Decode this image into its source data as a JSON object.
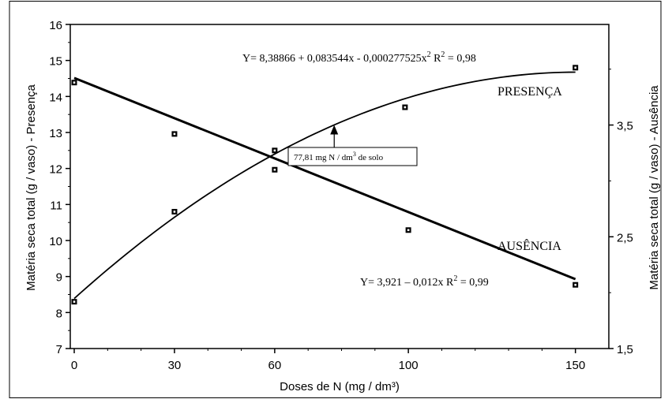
{
  "chart_data": {
    "type": "line",
    "xlabel": "Doses de N  (mg / dm³)",
    "ylabel_left": "Matéria seca total (g / vaso) - Presença",
    "ylabel_right": "Matéria seca total (g / vaso) - Ausência",
    "x_ticks": [
      "0",
      "30",
      "60",
      "100",
      "150"
    ],
    "x_tick_values": [
      0,
      30,
      60,
      100,
      150
    ],
    "xlim": [
      0,
      160
    ],
    "ylim_left": [
      7,
      16
    ],
    "y_ticks_left": [
      "7",
      "8",
      "9",
      "10",
      "11",
      "12",
      "13",
      "14",
      "15",
      "16"
    ],
    "ylim_right": [
      1.5,
      4.4
    ],
    "y_ticks_right": [
      "1,5",
      "2,5",
      "3,5"
    ],
    "y_tick_values_right": [
      1.5,
      2.5,
      3.5
    ],
    "series": [
      {
        "name": "PRESENÇA",
        "axis": "left",
        "points": [
          {
            "x": 0,
            "y": 8.3
          },
          {
            "x": 30,
            "y": 10.8
          },
          {
            "x": 60,
            "y": 12.5
          },
          {
            "x": 99,
            "y": 13.7
          },
          {
            "x": 150,
            "y": 14.8
          }
        ],
        "equation": "Y= 8,38866 + 0,083544x - 0,000277525x² R² = 0,98",
        "equation_display": {
          "main": "Y= 8,38866 + 0,083544x - 0,000277525x",
          "sup": "2",
          "r2_prefix": "R",
          "r2_sup": "2",
          "r2_value": " = 0,98"
        },
        "fit": {
          "a": 8.38866,
          "b": 0.083544,
          "c": -0.000277525
        }
      },
      {
        "name": "AUSÊNCIA",
        "axis": "right",
        "points": [
          {
            "x": 0,
            "y": 3.88
          },
          {
            "x": 30,
            "y": 3.42
          },
          {
            "x": 60,
            "y": 3.1
          },
          {
            "x": 100,
            "y": 2.56
          },
          {
            "x": 150,
            "y": 2.07
          }
        ],
        "equation": "Y= 3,921 – 0,012x R² = 0,99",
        "equation_display": {
          "main": "Y= 3,921 – 0,012x",
          "r2_prefix": "R",
          "r2_sup": "2",
          "r2_value": " = 0,99"
        },
        "fit": {
          "a": 3.921,
          "b": -0.012
        }
      }
    ],
    "annotation": {
      "text": "77,81 mg N / dm³ de solo",
      "display_main": "77,81 mg N / dm",
      "display_sup": "3",
      "display_tail": " de solo",
      "x": 77.81
    },
    "grid": false,
    "legend": "inline-labels"
  }
}
